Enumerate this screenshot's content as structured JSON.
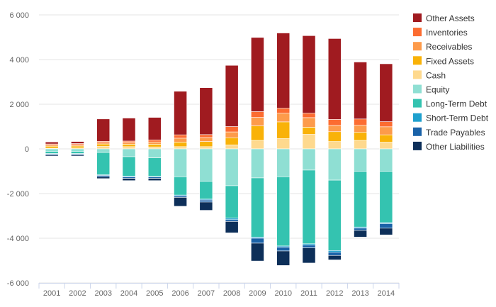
{
  "chart_data": {
    "type": "bar",
    "stacked": true,
    "title": "",
    "xlabel": "",
    "ylabel": "",
    "categories": [
      "2001",
      "2002",
      "2003",
      "2004",
      "2005",
      "2006",
      "2007",
      "2008",
      "2009",
      "2010",
      "2011",
      "2012",
      "2013",
      "2014"
    ],
    "ylim": [
      -6000,
      6000
    ],
    "yticks": [
      -6000,
      -4000,
      -2000,
      0,
      2000,
      4000,
      6000
    ],
    "ytick_labels": [
      "-6 000",
      "-4 000",
      "-2 000",
      "0",
      "2 000",
      "4 000",
      "6 000"
    ],
    "grid": true,
    "legend": "right",
    "positive_series": [
      {
        "name": "Cash",
        "color": "#fed98e",
        "values": [
          30,
          40,
          110,
          100,
          90,
          100,
          100,
          180,
          380,
          460,
          650,
          330,
          380,
          300
        ]
      },
      {
        "name": "Fixed Assets",
        "color": "#f9b208",
        "values": [
          90,
          90,
          110,
          110,
          120,
          200,
          230,
          320,
          650,
          750,
          320,
          440,
          360,
          330
        ]
      },
      {
        "name": "Receivables",
        "color": "#fd9b4b",
        "values": [
          60,
          60,
          60,
          80,
          100,
          180,
          180,
          260,
          380,
          390,
          430,
          280,
          320,
          360
        ]
      },
      {
        "name": "Inventories",
        "color": "#fc6c31",
        "values": [
          40,
          50,
          60,
          60,
          90,
          150,
          130,
          240,
          260,
          220,
          200,
          270,
          280,
          230
        ]
      },
      {
        "name": "Other Assets",
        "color": "#a01b20",
        "values": [
          90,
          90,
          1000,
          1030,
          1010,
          1950,
          2100,
          2740,
          3320,
          3370,
          3470,
          3620,
          2550,
          2590
        ]
      }
    ],
    "negative_series": [
      {
        "name": "Equity",
        "color": "#8fdfd3",
        "values": [
          -110,
          -110,
          -160,
          -350,
          -400,
          -1250,
          -1450,
          -1650,
          -1300,
          -1250,
          -950,
          -1400,
          -1000,
          -1000
        ]
      },
      {
        "name": "Long-Term Debt",
        "color": "#34c3b0",
        "values": [
          -100,
          -100,
          -1000,
          -870,
          -830,
          -820,
          -800,
          -1450,
          -2650,
          -3100,
          -3300,
          -3150,
          -2500,
          -2300
        ]
      },
      {
        "name": "Short-Term Debt",
        "color": "#1ea0ce",
        "values": [
          -20,
          -20,
          -30,
          -40,
          -30,
          -40,
          -40,
          -70,
          -50,
          -50,
          -60,
          -80,
          -50,
          -50
        ]
      },
      {
        "name": "Trade Payables",
        "color": "#1a62a8",
        "values": [
          -40,
          -40,
          -60,
          -60,
          -60,
          -60,
          -90,
          -80,
          -220,
          -170,
          -120,
          -140,
          -100,
          -200
        ]
      },
      {
        "name": "Other Liabilities",
        "color": "#0d2f59",
        "values": [
          -50,
          -50,
          -80,
          -100,
          -100,
          -400,
          -370,
          -510,
          -800,
          -650,
          -680,
          -200,
          -300,
          -300
        ]
      }
    ],
    "legend_entries": [
      {
        "name": "Other Assets",
        "color": "#a01b20"
      },
      {
        "name": "Inventories",
        "color": "#fc6c31"
      },
      {
        "name": "Receivables",
        "color": "#fd9b4b"
      },
      {
        "name": "Fixed Assets",
        "color": "#f9b208"
      },
      {
        "name": "Cash",
        "color": "#fed98e"
      },
      {
        "name": "Equity",
        "color": "#8fdfd3"
      },
      {
        "name": "Long-Term Debt",
        "color": "#34c3b0"
      },
      {
        "name": "Short-Term Debt",
        "color": "#1ea0ce"
      },
      {
        "name": "Trade Payables",
        "color": "#1a62a8"
      },
      {
        "name": "Other Liabilities",
        "color": "#0d2f59"
      }
    ]
  }
}
